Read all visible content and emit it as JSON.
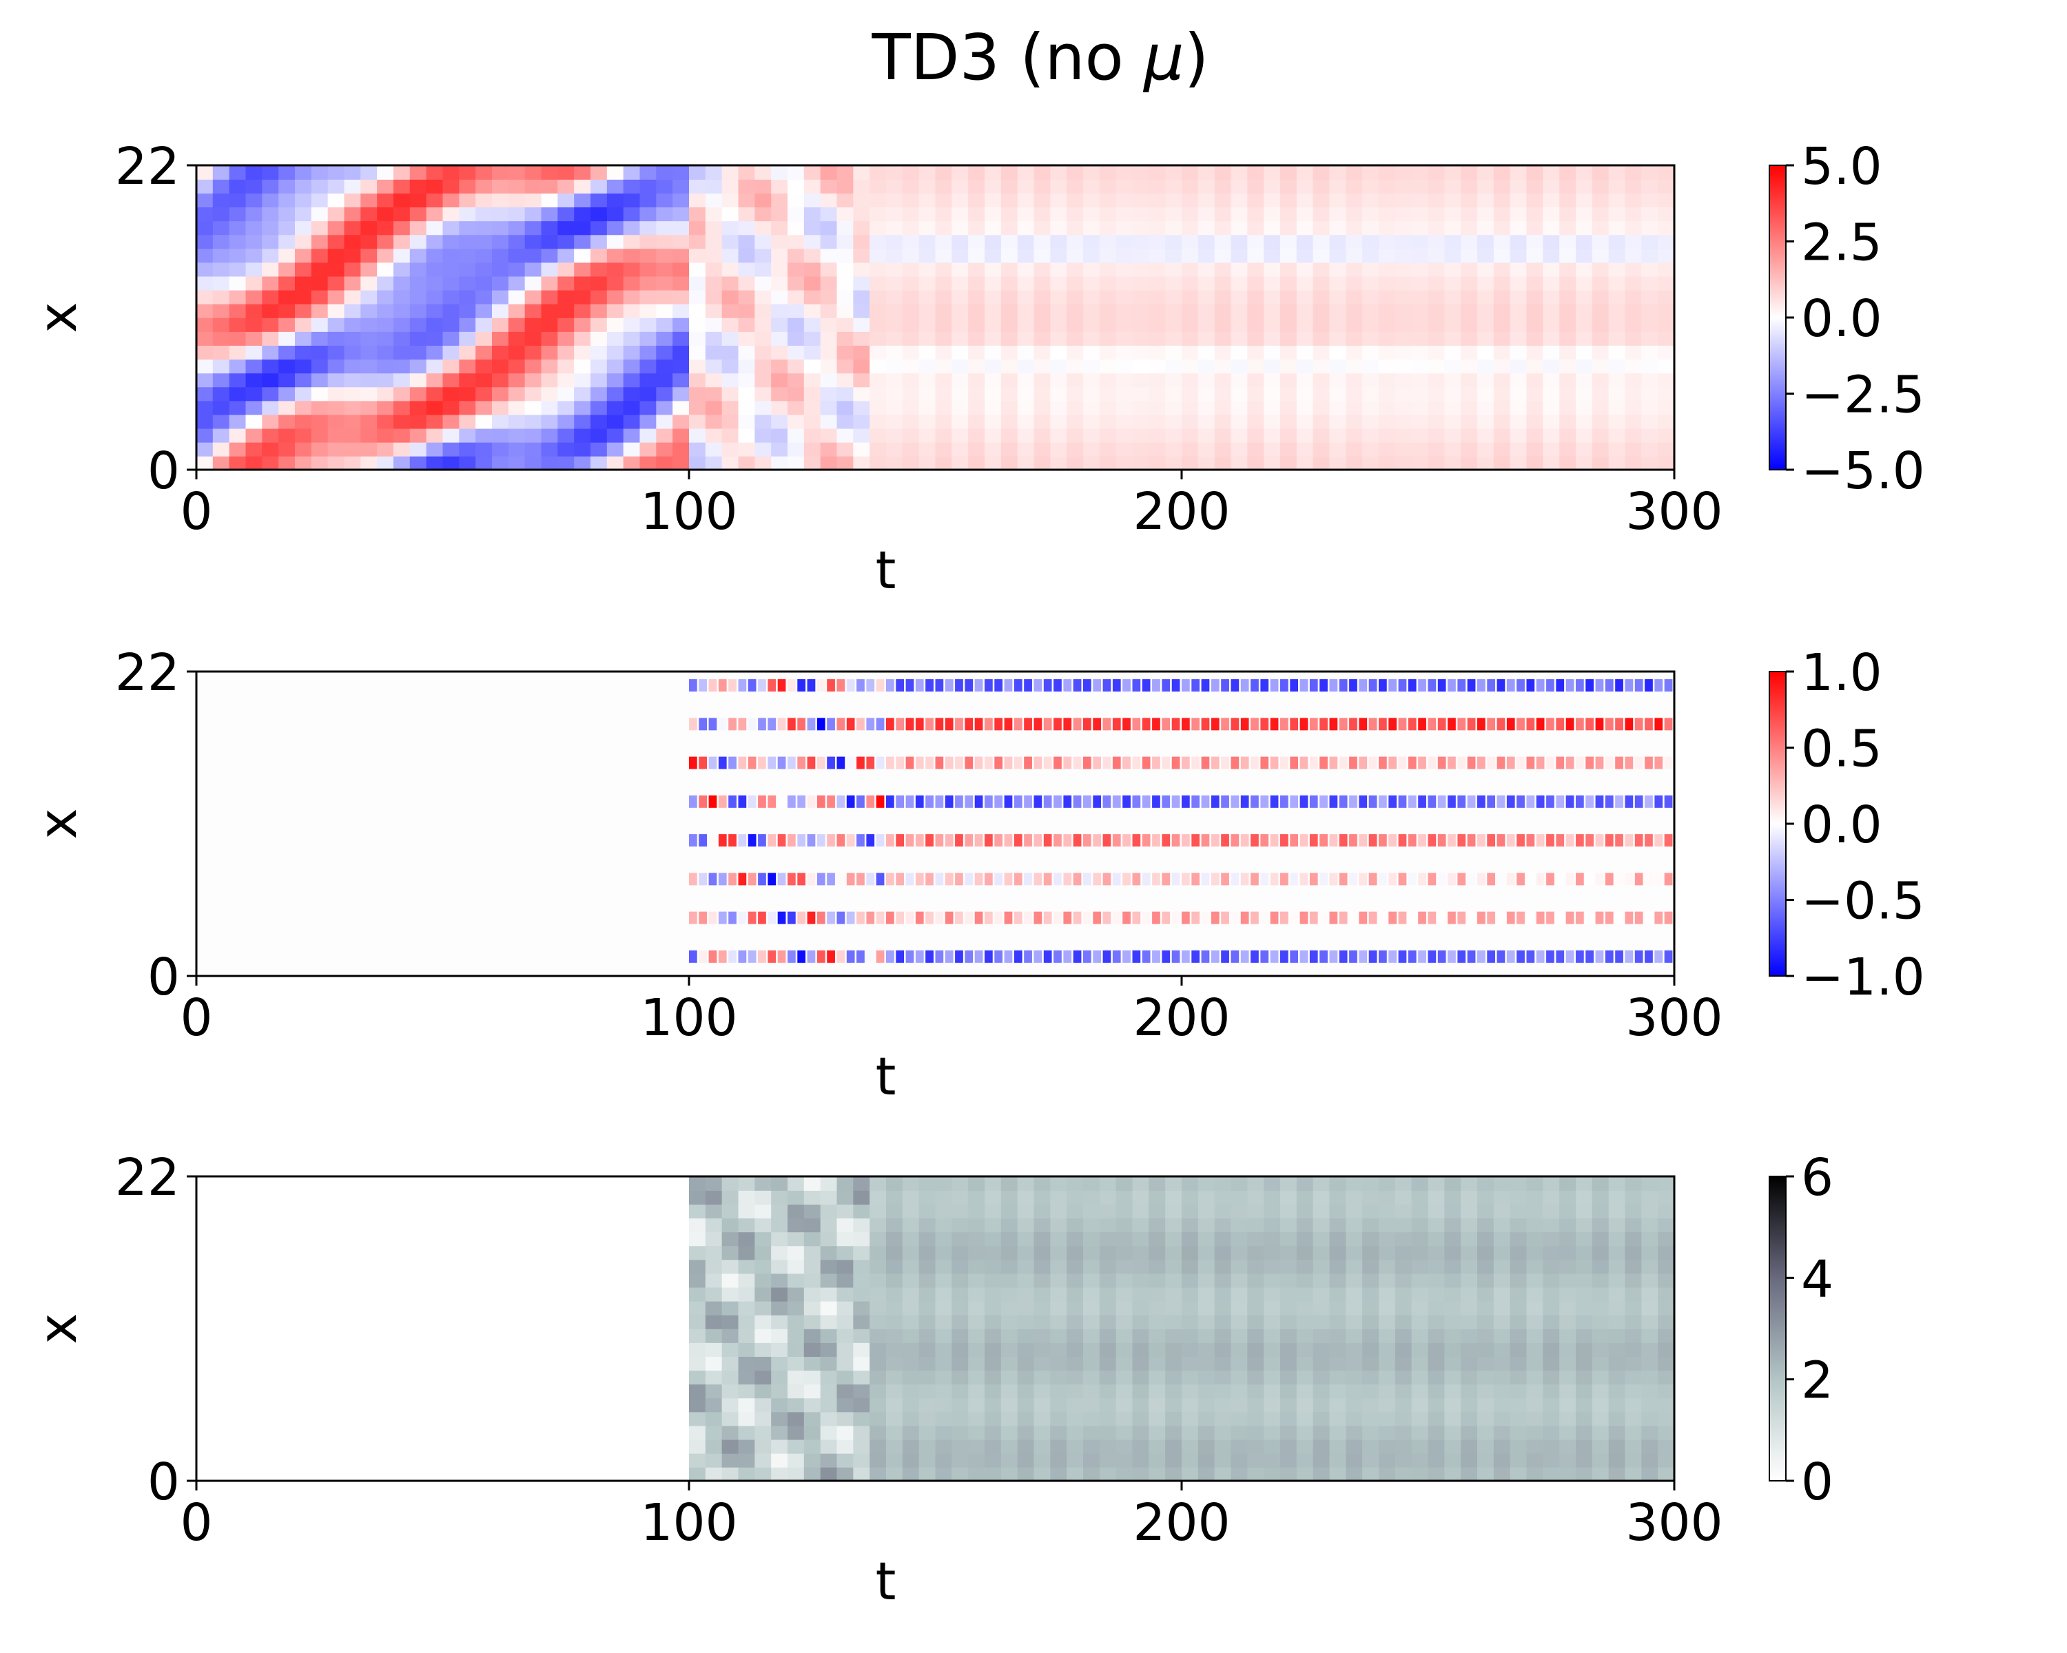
{
  "figure": {
    "title_prefix": "TD3 (no ",
    "title_symbol": "μ",
    "title_suffix": ")"
  },
  "chart_data": [
    {
      "type": "heatmap",
      "name": "panel-1",
      "description": "space-time field, blue-white-red colormap",
      "xlabel": "t",
      "ylabel": "x",
      "xlim": [
        0,
        300
      ],
      "ylim": [
        0,
        22
      ],
      "xticks": [
        0,
        100,
        200,
        300
      ],
      "xtick_labels": [
        "0",
        "100",
        "200",
        "300"
      ],
      "yticks": [
        0,
        22
      ],
      "ytick_labels": [
        "0",
        "22"
      ],
      "colormap": "bwr",
      "colorbar_range": [
        -5.0,
        5.0
      ],
      "colorbar_ticks": [
        5.0,
        2.5,
        0.0,
        -2.5,
        -5.0
      ],
      "colorbar_tick_labels": [
        "5.0",
        "2.5",
        "0.0",
        "−2.5",
        "−5.0"
      ],
      "regimes": [
        {
          "t_range": [
            0,
            100
          ],
          "pattern": "chaotic diagonal stripes, amplitude ~3"
        },
        {
          "t_range": [
            100,
            135
          ],
          "pattern": "transition, mild amplitude"
        },
        {
          "t_range": [
            135,
            300
          ],
          "pattern": "steady light-red bands, amplitude ~0.7"
        }
      ]
    },
    {
      "type": "heatmap",
      "name": "panel-2",
      "description": "actuation signal at 8 discrete locations",
      "xlabel": "t",
      "ylabel": "x",
      "xlim": [
        0,
        300
      ],
      "ylim": [
        0,
        22
      ],
      "xticks": [
        0,
        100,
        200,
        300
      ],
      "xtick_labels": [
        "0",
        "100",
        "200",
        "300"
      ],
      "yticks": [
        0,
        22
      ],
      "ytick_labels": [
        "0",
        "22"
      ],
      "colormap": "bwr",
      "colorbar_range": [
        -1.0,
        1.0
      ],
      "colorbar_ticks": [
        1.0,
        0.5,
        0.0,
        -0.5,
        -1.0
      ],
      "colorbar_tick_labels": [
        "1.0",
        "0.5",
        "0.0",
        "−0.5",
        "−1.0"
      ],
      "actuator_x": [
        1.4,
        4.2,
        7.0,
        9.8,
        12.6,
        15.4,
        18.2,
        21.0
      ],
      "steady_bias": [
        -0.55,
        0.25,
        0.15,
        0.45,
        -0.55,
        0.3,
        0.7,
        -0.6
      ],
      "active_from_t": 100
    },
    {
      "type": "heatmap",
      "name": "panel-3",
      "description": "magnitude field, white-gray-black colormap",
      "xlabel": "t",
      "ylabel": "x",
      "xlim": [
        0,
        300
      ],
      "ylim": [
        0,
        22
      ],
      "xticks": [
        0,
        100,
        200,
        300
      ],
      "xtick_labels": [
        "0",
        "100",
        "200",
        "300"
      ],
      "yticks": [
        0,
        22
      ],
      "ytick_labels": [
        "0",
        "22"
      ],
      "colormap": "bone_r",
      "colorbar_range": [
        0,
        6
      ],
      "colorbar_ticks": [
        6,
        4,
        2,
        0
      ],
      "colorbar_tick_labels": [
        "6",
        "4",
        "2",
        "0"
      ],
      "regimes": [
        {
          "t_range": [
            0,
            100
          ],
          "pattern": "empty (white)"
        },
        {
          "t_range": [
            100,
            135
          ],
          "pattern": "irregular, values 0-4"
        },
        {
          "t_range": [
            135,
            300
          ],
          "pattern": "steady gray-green bands, values ~1.5-2.5"
        }
      ]
    }
  ]
}
